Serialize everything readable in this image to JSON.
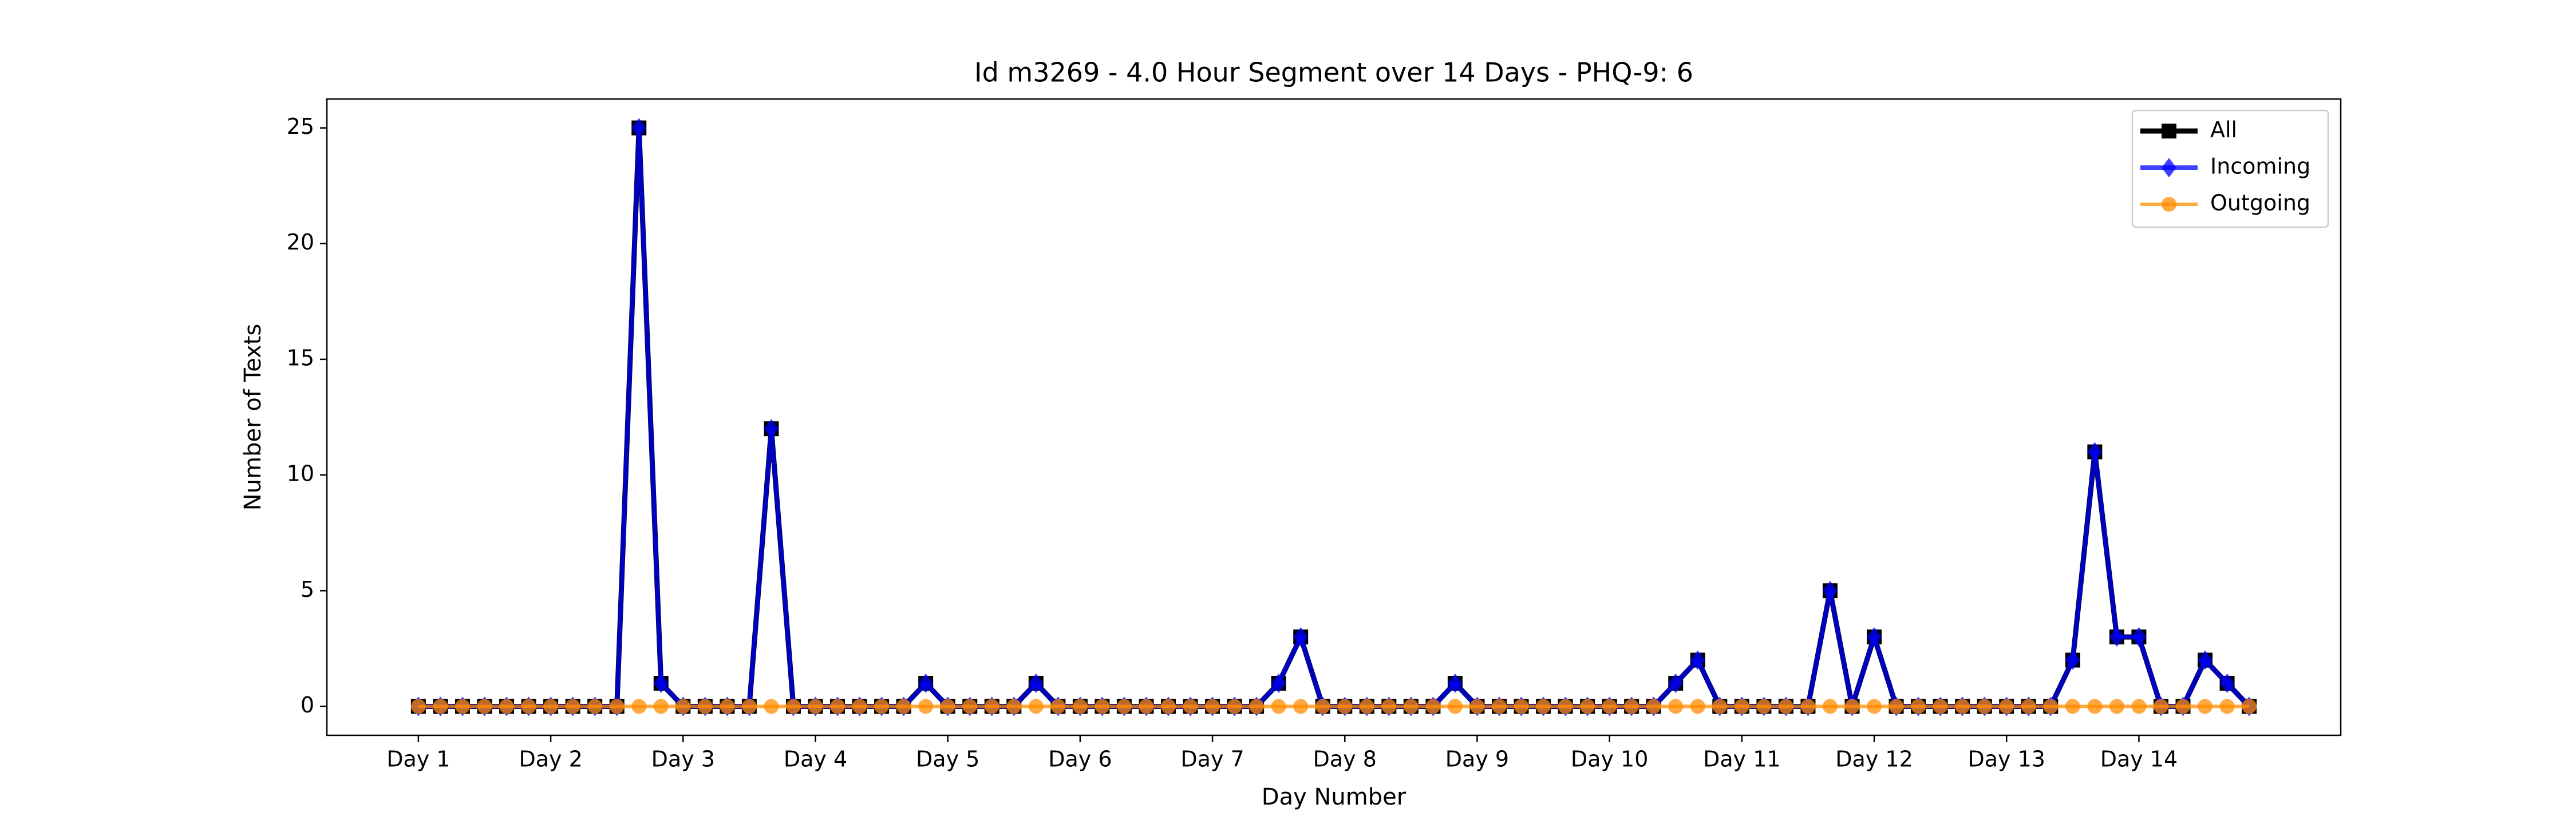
{
  "chart_data": {
    "type": "line",
    "title": "Id m3269 - 4.0 Hour Segment over 14 Days - PHQ-9: 6",
    "xlabel": "Day Number",
    "ylabel": "Number of Texts",
    "x": [
      0,
      1,
      2,
      3,
      4,
      5,
      6,
      7,
      8,
      9,
      10,
      11,
      12,
      13,
      14,
      15,
      16,
      17,
      18,
      19,
      20,
      21,
      22,
      23,
      24,
      25,
      26,
      27,
      28,
      29,
      30,
      31,
      32,
      33,
      34,
      35,
      36,
      37,
      38,
      39,
      40,
      41,
      42,
      43,
      44,
      45,
      46,
      47,
      48,
      49,
      50,
      51,
      52,
      53,
      54,
      55,
      56,
      57,
      58,
      59,
      60,
      61,
      62,
      63,
      64,
      65,
      66,
      67,
      68,
      69,
      70,
      71,
      72,
      73,
      74,
      75,
      76,
      77,
      78,
      79,
      80,
      81,
      82,
      83
    ],
    "series": [
      {
        "name": "All",
        "color": "#000000",
        "marker": "square",
        "alpha": 1,
        "linewidth": 9,
        "values": [
          0,
          0,
          0,
          0,
          0,
          0,
          0,
          0,
          0,
          0,
          25,
          1,
          0,
          0,
          0,
          0,
          12,
          0,
          0,
          0,
          0,
          0,
          0,
          1,
          0,
          0,
          0,
          0,
          1,
          0,
          0,
          0,
          0,
          0,
          0,
          0,
          0,
          0,
          0,
          1,
          3,
          0,
          0,
          0,
          0,
          0,
          0,
          1,
          0,
          0,
          0,
          0,
          0,
          0,
          0,
          0,
          0,
          1,
          2,
          0,
          0,
          0,
          0,
          0,
          5,
          0,
          3,
          0,
          0,
          0,
          0,
          0,
          0,
          0,
          0,
          2,
          11,
          3,
          3,
          0,
          0,
          2,
          1,
          0
        ]
      },
      {
        "name": "Incoming",
        "color": "#0000ff",
        "marker": "diamond",
        "alpha": 0.75,
        "linewidth": 8,
        "values": [
          0,
          0,
          0,
          0,
          0,
          0,
          0,
          0,
          0,
          0,
          25,
          1,
          0,
          0,
          0,
          0,
          12,
          0,
          0,
          0,
          0,
          0,
          0,
          1,
          0,
          0,
          0,
          0,
          1,
          0,
          0,
          0,
          0,
          0,
          0,
          0,
          0,
          0,
          0,
          1,
          3,
          0,
          0,
          0,
          0,
          0,
          0,
          1,
          0,
          0,
          0,
          0,
          0,
          0,
          0,
          0,
          0,
          1,
          2,
          0,
          0,
          0,
          0,
          0,
          5,
          0,
          3,
          0,
          0,
          0,
          0,
          0,
          0,
          0,
          0,
          2,
          11,
          3,
          3,
          0,
          0,
          2,
          1,
          0
        ]
      },
      {
        "name": "Outgoing",
        "color": "#ff8c00",
        "marker": "circle",
        "alpha": 0.75,
        "linewidth": 6,
        "values": [
          0,
          0,
          0,
          0,
          0,
          0,
          0,
          0,
          0,
          0,
          0,
          0,
          0,
          0,
          0,
          0,
          0,
          0,
          0,
          0,
          0,
          0,
          0,
          0,
          0,
          0,
          0,
          0,
          0,
          0,
          0,
          0,
          0,
          0,
          0,
          0,
          0,
          0,
          0,
          0,
          0,
          0,
          0,
          0,
          0,
          0,
          0,
          0,
          0,
          0,
          0,
          0,
          0,
          0,
          0,
          0,
          0,
          0,
          0,
          0,
          0,
          0,
          0,
          0,
          0,
          0,
          0,
          0,
          0,
          0,
          0,
          0,
          0,
          0,
          0,
          0,
          0,
          0,
          0,
          0,
          0,
          0,
          0,
          0
        ]
      }
    ],
    "xlim": [
      -4.15,
      87.15
    ],
    "xticks": [
      {
        "value": 0,
        "label": "Day 1"
      },
      {
        "value": 6,
        "label": "Day 2"
      },
      {
        "value": 12,
        "label": "Day 3"
      },
      {
        "value": 18,
        "label": "Day 4"
      },
      {
        "value": 24,
        "label": "Day 5"
      },
      {
        "value": 30,
        "label": "Day 6"
      },
      {
        "value": 36,
        "label": "Day 7"
      },
      {
        "value": 42,
        "label": "Day 8"
      },
      {
        "value": 48,
        "label": "Day 9"
      },
      {
        "value": 54,
        "label": "Day 10"
      },
      {
        "value": 60,
        "label": "Day 11"
      },
      {
        "value": 66,
        "label": "Day 12"
      },
      {
        "value": 72,
        "label": "Day 13"
      },
      {
        "value": 78,
        "label": "Day 14"
      }
    ],
    "ylim": [
      -1.25,
      26.25
    ],
    "yticks": [
      0,
      5,
      10,
      15,
      20,
      25
    ],
    "grid": false,
    "legend": "upper right"
  }
}
